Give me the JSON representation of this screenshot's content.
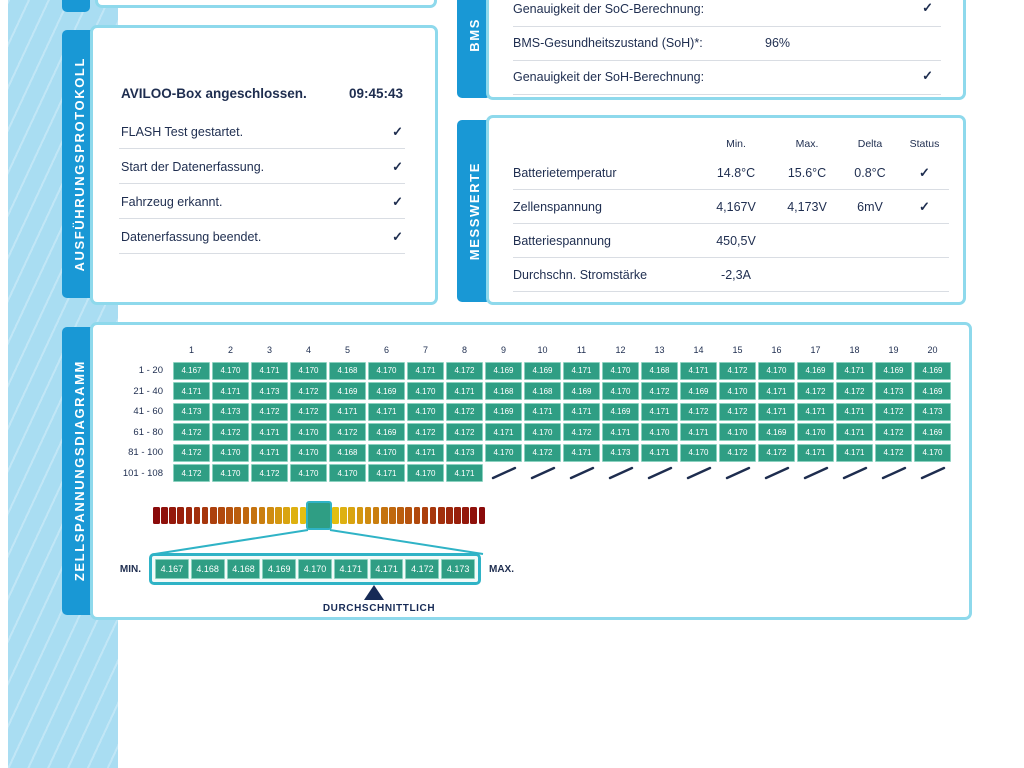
{
  "colors": {
    "tab_blue": "#1998d5",
    "panel_border": "#8ed9ec",
    "strip_blue": "#a9ddf2",
    "cell_green": "#2f9e84",
    "cell_border": "#8ad1bf",
    "text_dark": "#1e2d4f",
    "zoom_border": "#2fb3c6",
    "marker_navy": "#162a56"
  },
  "protocol": {
    "tab_label": "AUSFÜHRUNGSPROTOKOLL",
    "rows": [
      {
        "label": "AVILOO-Box angeschlossen.",
        "value": "09:45:43",
        "bold": true
      },
      {
        "label": "FLASH Test gestartet.",
        "check": true
      },
      {
        "label": "Start der Datenerfassung.",
        "check": true
      },
      {
        "label": "Fahrzeug erkannt.",
        "check": true
      },
      {
        "label": "Datenerfassung beendet.",
        "check": true
      }
    ]
  },
  "bms": {
    "tab_label": "BMS",
    "rows": [
      {
        "label": "Genauigkeit der SoC-Berechnung:",
        "check": true
      },
      {
        "label": "BMS-Gesundheitszustand (SoH)*:",
        "value": "96%"
      },
      {
        "label": "Genauigkeit der SoH-Berechnung:",
        "check": true
      }
    ]
  },
  "messwerte": {
    "tab_label": "MESSWERTE",
    "headers": [
      "Min.",
      "Max.",
      "Delta",
      "Status"
    ],
    "rows": [
      {
        "label": "Batterietemperatur",
        "min": "14.8°C",
        "max": "15.6°C",
        "delta": "0.8°C",
        "check": true
      },
      {
        "label": "Zellenspannung",
        "min": "4,167V",
        "max": "4,173V",
        "delta": "6mV",
        "check": true
      },
      {
        "label": "Batteriespannung",
        "min": "450,5V",
        "max": "",
        "delta": "",
        "check": false
      },
      {
        "label": "Durchschn. Stromstärke",
        "min": "-2,3A",
        "max": "",
        "delta": "",
        "check": false
      }
    ]
  },
  "diagram": {
    "tab_label": "ZELLSPANNUNGSDIAGRAMM",
    "col_headers": [
      "1",
      "2",
      "3",
      "4",
      "5",
      "6",
      "7",
      "8",
      "9",
      "10",
      "11",
      "12",
      "13",
      "14",
      "15",
      "16",
      "17",
      "18",
      "19",
      "20"
    ],
    "row_labels": [
      "1 - 20",
      "21 - 40",
      "41 - 60",
      "61 - 80",
      "81 - 100",
      "101 - 108"
    ],
    "rows": [
      [
        "4.167",
        "4.170",
        "4.171",
        "4.170",
        "4.168",
        "4.170",
        "4.171",
        "4.172",
        "4.169",
        "4.169",
        "4.171",
        "4.170",
        "4.168",
        "4.171",
        "4.172",
        "4.170",
        "4.169",
        "4.171",
        "4.169",
        "4.169"
      ],
      [
        "4.171",
        "4.171",
        "4.173",
        "4.172",
        "4.169",
        "4.169",
        "4.170",
        "4.171",
        "4.168",
        "4.168",
        "4.169",
        "4.170",
        "4.172",
        "4.169",
        "4.170",
        "4.171",
        "4.172",
        "4.172",
        "4.173",
        "4.169"
      ],
      [
        "4.173",
        "4.173",
        "4.172",
        "4.172",
        "4.171",
        "4.171",
        "4.170",
        "4.172",
        "4.169",
        "4.171",
        "4.171",
        "4.169",
        "4.171",
        "4.172",
        "4.172",
        "4.171",
        "4.171",
        "4.171",
        "4.172",
        "4.173"
      ],
      [
        "4.172",
        "4.172",
        "4.171",
        "4.170",
        "4.172",
        "4.169",
        "4.172",
        "4.172",
        "4.171",
        "4.170",
        "4.172",
        "4.171",
        "4.170",
        "4.171",
        "4.170",
        "4.169",
        "4.170",
        "4.171",
        "4.172",
        "4.169"
      ],
      [
        "4.172",
        "4.170",
        "4.171",
        "4.170",
        "4.168",
        "4.170",
        "4.171",
        "4.173",
        "4.170",
        "4.172",
        "4.171",
        "4.173",
        "4.171",
        "4.170",
        "4.172",
        "4.172",
        "4.171",
        "4.171",
        "4.172",
        "4.170"
      ],
      [
        "4.172",
        "4.170",
        "4.172",
        "4.170",
        "4.170",
        "4.171",
        "4.170",
        "4.171"
      ]
    ],
    "empty_cells_last_row": 12,
    "zoom_strip": {
      "min_label": "MIN.",
      "max_label": "MAX.",
      "values": [
        "4.167",
        "4.168",
        "4.168",
        "4.169",
        "4.170",
        "4.171",
        "4.171",
        "4.172",
        "4.173"
      ],
      "avg_label": "DURCHSCHNITTLICH",
      "avg_index": 6
    }
  }
}
